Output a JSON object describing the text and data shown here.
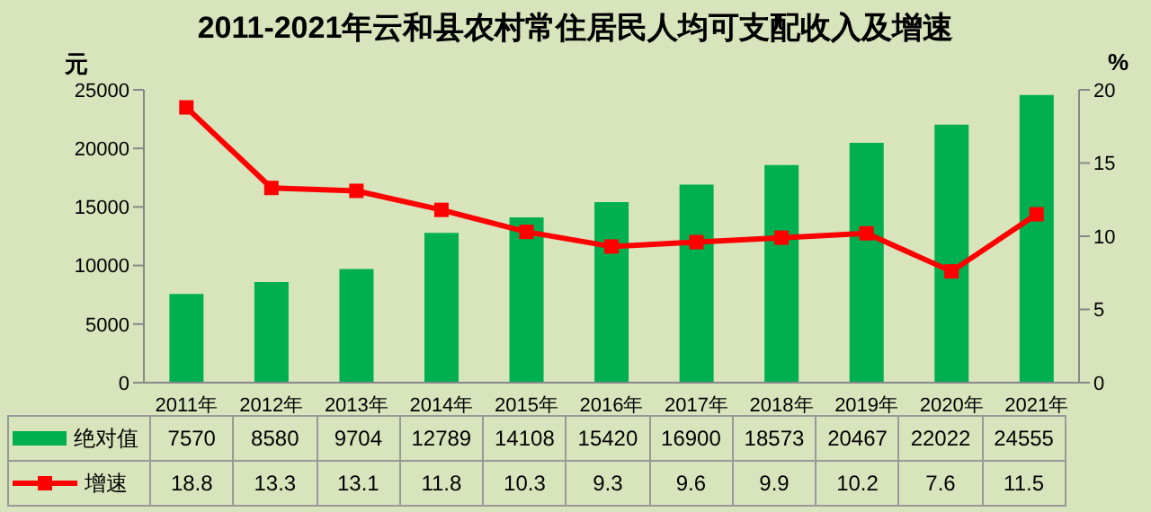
{
  "chart_data": {
    "type": "bar",
    "title": "2011-2021年云和县农村常住居民人均可支配收入及增速",
    "ylabel": "元",
    "y2label": "%",
    "categories": [
      "2011年",
      "2012年",
      "2013年",
      "2014年",
      "2015年",
      "2016年",
      "2017年",
      "2018年",
      "2019年",
      "2020年",
      "2021年"
    ],
    "series": [
      {
        "name": "绝对值",
        "color": "#00b050",
        "values": [
          7570,
          8580,
          9704,
          12789,
          14108,
          15420,
          16900,
          18573,
          20467,
          22022,
          24555
        ]
      },
      {
        "name": "增速",
        "type": "line",
        "axis": "y2",
        "color": "#ff0000",
        "values": [
          18.8,
          13.3,
          13.1,
          11.8,
          10.3,
          9.3,
          9.6,
          9.9,
          10.2,
          7.6,
          11.5
        ]
      }
    ],
    "ylim": [
      0,
      25000
    ],
    "yticks": [
      0,
      5000,
      10000,
      15000,
      20000,
      25000
    ],
    "y2lim": [
      0,
      20
    ],
    "y2ticks": [
      0,
      5,
      10,
      15,
      20
    ],
    "grid": false,
    "legend": "bottom",
    "marker": "square",
    "line_style": "solid",
    "data_labels": true
  }
}
